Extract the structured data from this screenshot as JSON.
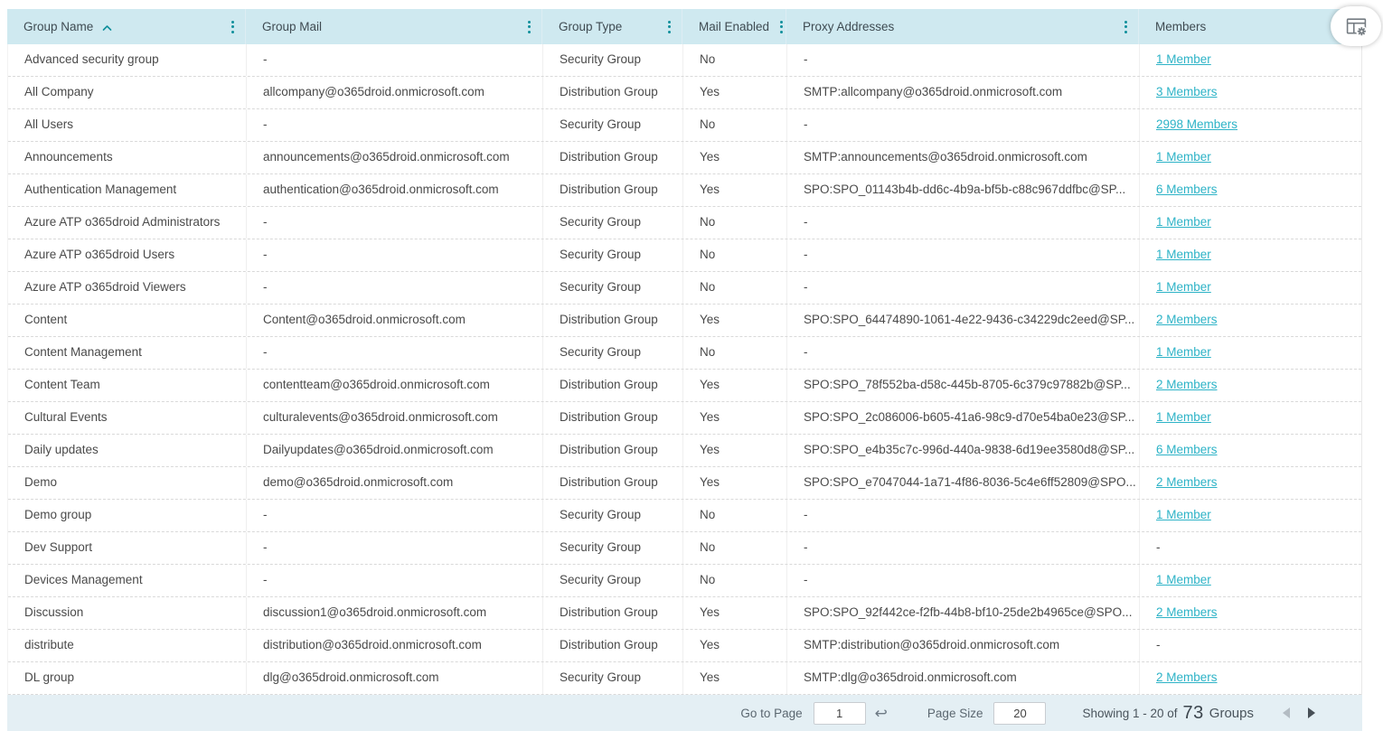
{
  "colors": {
    "header_bg": "#cfe9f0",
    "accent_teal": "#0f8f9b",
    "link_teal": "#2db3c7",
    "footer_bg": "#e4eff4"
  },
  "header": {
    "columns": [
      "Group Name",
      "Group Mail",
      "Group Type",
      "Mail Enabled",
      "Proxy Addresses",
      "Members"
    ],
    "sorted_column": "Group Name",
    "sort_direction": "ascending",
    "column_menu_icon": "vertical-three-dots",
    "column_settings_icon": "table-with-gear"
  },
  "rows": [
    {
      "name": "Advanced security group",
      "mail": "-",
      "type": "Security Group",
      "mail_enabled": "No",
      "proxy": "-",
      "members": "1 Member"
    },
    {
      "name": "All Company",
      "mail": "allcompany@o365droid.onmicrosoft.com",
      "type": "Distribution Group",
      "mail_enabled": "Yes",
      "proxy": "SMTP:allcompany@o365droid.onmicrosoft.com",
      "members": "3 Members"
    },
    {
      "name": "All Users",
      "mail": "-",
      "type": "Security Group",
      "mail_enabled": "No",
      "proxy": "-",
      "members": "2998 Members"
    },
    {
      "name": "Announcements",
      "mail": "announcements@o365droid.onmicrosoft.com",
      "type": "Distribution Group",
      "mail_enabled": "Yes",
      "proxy": "SMTP:announcements@o365droid.onmicrosoft.com",
      "members": "1 Member"
    },
    {
      "name": "Authentication Management",
      "mail": "authentication@o365droid.onmicrosoft.com",
      "type": "Distribution Group",
      "mail_enabled": "Yes",
      "proxy": "SPO:SPO_01143b4b-dd6c-4b9a-bf5b-c88c967ddfbc@SP...",
      "members": "6 Members"
    },
    {
      "name": "Azure ATP o365droid Administrators",
      "mail": "-",
      "type": "Security Group",
      "mail_enabled": "No",
      "proxy": "-",
      "members": "1 Member"
    },
    {
      "name": "Azure ATP o365droid Users",
      "mail": "-",
      "type": "Security Group",
      "mail_enabled": "No",
      "proxy": "-",
      "members": "1 Member"
    },
    {
      "name": "Azure ATP o365droid Viewers",
      "mail": "-",
      "type": "Security Group",
      "mail_enabled": "No",
      "proxy": "-",
      "members": "1 Member"
    },
    {
      "name": "Content",
      "mail": "Content@o365droid.onmicrosoft.com",
      "type": "Distribution Group",
      "mail_enabled": "Yes",
      "proxy": "SPO:SPO_64474890-1061-4e22-9436-c34229dc2eed@SP...",
      "members": "2 Members"
    },
    {
      "name": "Content Management",
      "mail": "-",
      "type": "Security Group",
      "mail_enabled": "No",
      "proxy": "-",
      "members": "1 Member"
    },
    {
      "name": "Content Team",
      "mail": "contentteam@o365droid.onmicrosoft.com",
      "type": "Distribution Group",
      "mail_enabled": "Yes",
      "proxy": "SPO:SPO_78f552ba-d58c-445b-8705-6c379c97882b@SP...",
      "members": "2 Members"
    },
    {
      "name": "Cultural Events",
      "mail": "culturalevents@o365droid.onmicrosoft.com",
      "type": "Distribution Group",
      "mail_enabled": "Yes",
      "proxy": "SPO:SPO_2c086006-b605-41a6-98c9-d70e54ba0e23@SP...",
      "members": "1 Member"
    },
    {
      "name": "Daily updates",
      "mail": "Dailyupdates@o365droid.onmicrosoft.com",
      "type": "Distribution Group",
      "mail_enabled": "Yes",
      "proxy": "SPO:SPO_e4b35c7c-996d-440a-9838-6d19ee3580d8@SP...",
      "members": "6 Members"
    },
    {
      "name": "Demo",
      "mail": "demo@o365droid.onmicrosoft.com",
      "type": "Distribution Group",
      "mail_enabled": "Yes",
      "proxy": "SPO:SPO_e7047044-1a71-4f86-8036-5c4e6ff52809@SPO...",
      "members": "2 Members"
    },
    {
      "name": "Demo group",
      "mail": "-",
      "type": "Security Group",
      "mail_enabled": "No",
      "proxy": "-",
      "members": "1 Member"
    },
    {
      "name": "Dev Support",
      "mail": "-",
      "type": "Security Group",
      "mail_enabled": "No",
      "proxy": "-",
      "members": "-"
    },
    {
      "name": "Devices Management",
      "mail": "-",
      "type": "Security Group",
      "mail_enabled": "No",
      "proxy": "-",
      "members": "1 Member"
    },
    {
      "name": "Discussion",
      "mail": "discussion1@o365droid.onmicrosoft.com",
      "type": "Distribution Group",
      "mail_enabled": "Yes",
      "proxy": "SPO:SPO_92f442ce-f2fb-44b8-bf10-25de2b4965ce@SPO...",
      "members": "2 Members"
    },
    {
      "name": "distribute",
      "mail": "distribution@o365droid.onmicrosoft.com",
      "type": "Distribution Group",
      "mail_enabled": "Yes",
      "proxy": "SMTP:distribution@o365droid.onmicrosoft.com",
      "members": "-"
    },
    {
      "name": "DL group",
      "mail": "dlg@o365droid.onmicrosoft.com",
      "type": "Security Group",
      "mail_enabled": "Yes",
      "proxy": "SMTP:dlg@o365droid.onmicrosoft.com",
      "members": "2 Members"
    }
  ],
  "footer": {
    "go_to_page_label": "Go to Page",
    "go_to_page_value": "1",
    "enter_glyph": "↩",
    "page_size_label": "Page Size",
    "page_size_value": "20",
    "showing_prefix": "Showing 1 - 20 of",
    "total_count": "73",
    "groups_label": "Groups"
  }
}
